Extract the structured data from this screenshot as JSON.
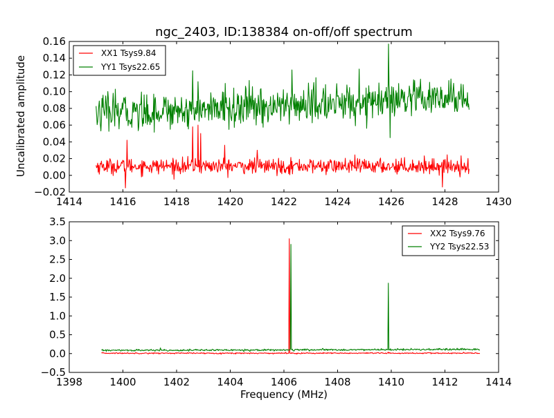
{
  "chart_data": [
    {
      "type": "line",
      "title": "ngc_2403, ID:138384 on-off/off spectrum",
      "xlabel": "",
      "ylabel": "Uncalibrated amplitude",
      "xlim": [
        1414,
        1430
      ],
      "ylim": [
        -0.02,
        0.16
      ],
      "xticks": [
        1414,
        1416,
        1418,
        1420,
        1422,
        1424,
        1426,
        1428,
        1430
      ],
      "yticks": [
        -0.02,
        0.0,
        0.02,
        0.04,
        0.06,
        0.08,
        0.1,
        0.12,
        0.14,
        0.16
      ],
      "xtick_labels": [
        "1414",
        "1416",
        "1418",
        "1420",
        "1422",
        "1424",
        "1426",
        "1428",
        "1430"
      ],
      "ytick_labels": [
        "−0.02",
        "0.00",
        "0.02",
        "0.04",
        "0.06",
        "0.08",
        "0.10",
        "0.12",
        "0.14",
        "0.16"
      ],
      "legend_position": "top-left",
      "grid": false,
      "series": [
        {
          "name": "XX1 Tsys9.84",
          "color": "#ff0000",
          "x_range": [
            1415.0,
            1428.9
          ],
          "baseline": 0.011,
          "noise": 0.0045,
          "spikes": [
            {
              "x": 1416.1,
              "y": -0.015
            },
            {
              "x": 1416.15,
              "y": 0.042
            },
            {
              "x": 1418.6,
              "y": 0.058
            },
            {
              "x": 1418.8,
              "y": 0.06
            },
            {
              "x": 1418.9,
              "y": 0.05
            },
            {
              "x": 1419.8,
              "y": 0.036
            },
            {
              "x": 1421.0,
              "y": 0.03
            },
            {
              "x": 1427.9,
              "y": -0.014
            },
            {
              "x": 1428.0,
              "y": 0.019
            }
          ]
        },
        {
          "name": "YY1 Tsys22.65",
          "color": "#008000",
          "x_range": [
            1415.0,
            1428.9
          ],
          "baseline": 0.074,
          "baseline_end": 0.092,
          "noise": 0.011,
          "spikes": [
            {
              "x": 1418.6,
              "y": 0.125
            },
            {
              "x": 1418.8,
              "y": 0.112
            },
            {
              "x": 1422.3,
              "y": 0.126
            },
            {
              "x": 1424.8,
              "y": 0.127
            },
            {
              "x": 1425.9,
              "y": 0.157
            },
            {
              "x": 1425.95,
              "y": 0.045
            }
          ]
        }
      ]
    },
    {
      "type": "line",
      "title": "",
      "xlabel": "Frequency (MHz)",
      "ylabel": "",
      "xlim": [
        1398,
        1414
      ],
      "ylim": [
        -0.5,
        3.5
      ],
      "xticks": [
        1398,
        1400,
        1402,
        1404,
        1406,
        1408,
        1410,
        1412,
        1414
      ],
      "yticks": [
        -0.5,
        0.0,
        0.5,
        1.0,
        1.5,
        2.0,
        2.5,
        3.0,
        3.5
      ],
      "xtick_labels": [
        "1398",
        "1400",
        "1402",
        "1404",
        "1406",
        "1408",
        "1410",
        "1412",
        "1414"
      ],
      "ytick_labels": [
        "−0.5",
        "0.0",
        "0.5",
        "1.0",
        "1.5",
        "2.0",
        "2.5",
        "3.0",
        "3.5"
      ],
      "legend_position": "top-right",
      "grid": false,
      "series": [
        {
          "name": "XX2 Tsys9.76",
          "color": "#ff0000",
          "x_range": [
            1399.2,
            1413.3
          ],
          "baseline": 0.01,
          "noise": 0.008,
          "spikes": [
            {
              "x": 1406.2,
              "y": 3.05
            },
            {
              "x": 1409.9,
              "y": 0.04
            }
          ]
        },
        {
          "name": "YY2 Tsys22.53",
          "color": "#008000",
          "x_range": [
            1399.2,
            1413.3
          ],
          "baseline": 0.085,
          "baseline_end": 0.11,
          "noise": 0.012,
          "spikes": [
            {
              "x": 1401.4,
              "y": 0.15
            },
            {
              "x": 1406.25,
              "y": 2.9
            },
            {
              "x": 1409.9,
              "y": 1.87
            }
          ]
        }
      ]
    }
  ]
}
